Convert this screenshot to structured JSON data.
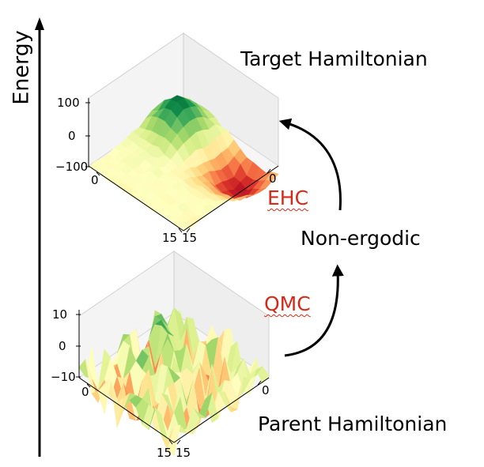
{
  "axis": {
    "label": "Energy"
  },
  "labels": {
    "target": "Target Hamiltonian",
    "parent": "Parent Hamiltonian",
    "ehc": "EHC",
    "qmc": "QMC",
    "nonergodic": "Non-ergodic"
  },
  "plots": {
    "top": {
      "z_ticks": [
        "100",
        "0",
        "−100"
      ],
      "left_ticks": [
        "0",
        "15"
      ],
      "right_ticks": [
        "0",
        "15"
      ]
    },
    "bottom": {
      "z_ticks": [
        "10",
        "0",
        "−10"
      ],
      "left_ticks": [
        "0",
        "15"
      ],
      "right_ticks": [
        "0",
        "15"
      ]
    }
  },
  "colors": {
    "arrow": "#000000",
    "accent_red": "#d52a1a",
    "colormap": "RdYlGn"
  }
}
